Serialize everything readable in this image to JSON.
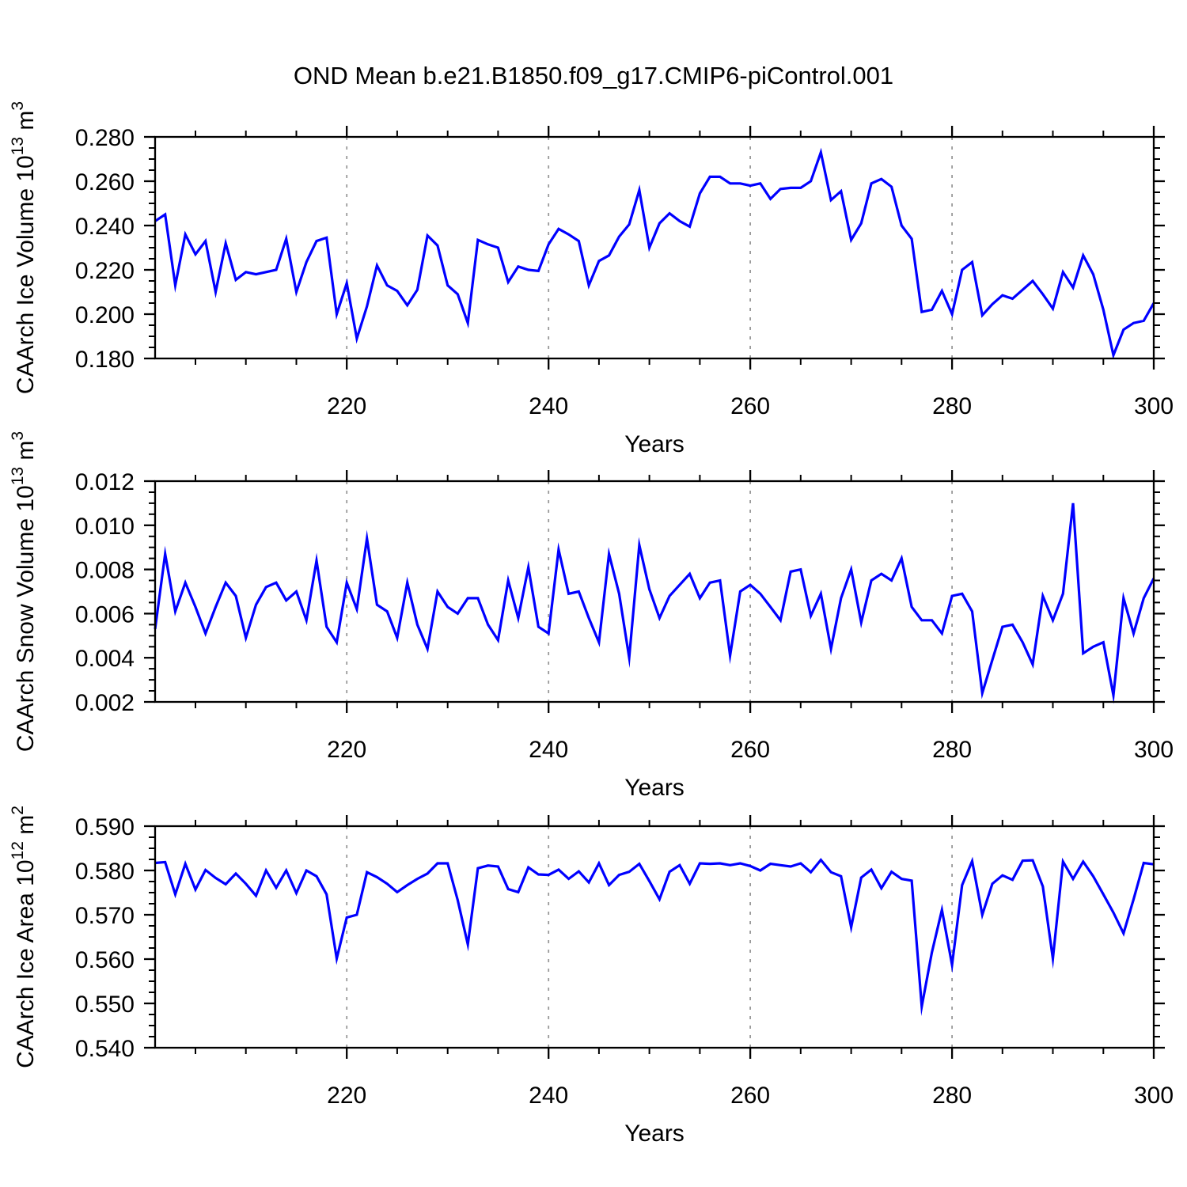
{
  "title": "OND Mean b.e21.B1850.f09_g17.CMIP6-piControl.001",
  "line_color": "#0000ff",
  "grid_color": "#999999",
  "frame_color": "#000000",
  "xtick_labels": [
    "220",
    "240",
    "260",
    "280",
    "300"
  ],
  "chart_data": [
    {
      "type": "line",
      "series_name": "caarch-ice-volume",
      "ylabel": {
        "base": "CAArch Ice Volume 10",
        "exp": "13",
        "unit": " m",
        "unit_exp": "3"
      },
      "xlabel": "Years",
      "ylim": [
        0.18,
        0.28
      ],
      "ytick_step": 0.02,
      "yminor_step": 0.005,
      "ytick_labels": [
        "0.180",
        "0.200",
        "0.220",
        "0.240",
        "0.260",
        "0.280"
      ],
      "xlim": [
        201,
        300
      ],
      "xticks": [
        220,
        240,
        260,
        280,
        300
      ],
      "xminor_step": 5,
      "grid_x": [
        220,
        240,
        260,
        280
      ],
      "legend": "none",
      "x": [
        201,
        202,
        203,
        204,
        205,
        206,
        207,
        208,
        209,
        210,
        211,
        212,
        213,
        214,
        215,
        216,
        217,
        218,
        219,
        220,
        221,
        222,
        223,
        224,
        225,
        226,
        227,
        228,
        229,
        230,
        231,
        232,
        233,
        234,
        235,
        236,
        237,
        238,
        239,
        240,
        241,
        242,
        243,
        244,
        245,
        246,
        247,
        248,
        249,
        250,
        251,
        252,
        253,
        254,
        255,
        256,
        257,
        258,
        259,
        260,
        261,
        262,
        263,
        264,
        265,
        266,
        267,
        268,
        269,
        270,
        271,
        272,
        273,
        274,
        275,
        276,
        277,
        278,
        279,
        280,
        281,
        282,
        283,
        284,
        285,
        286,
        287,
        288,
        289,
        290,
        291,
        292,
        293,
        294,
        295,
        296,
        297,
        298,
        299,
        300
      ],
      "values": [
        0.242,
        0.245,
        0.213,
        0.236,
        0.227,
        0.233,
        0.21,
        0.232,
        0.2155,
        0.219,
        0.218,
        0.219,
        0.22,
        0.234,
        0.21,
        0.2235,
        0.233,
        0.2345,
        0.2,
        0.214,
        0.189,
        0.2035,
        0.222,
        0.213,
        0.2105,
        0.204,
        0.211,
        0.2355,
        0.231,
        0.213,
        0.209,
        0.196,
        0.2335,
        0.2315,
        0.23,
        0.2145,
        0.2215,
        0.22,
        0.2195,
        0.2315,
        0.2385,
        0.236,
        0.233,
        0.213,
        0.224,
        0.2265,
        0.235,
        0.2405,
        0.256,
        0.23,
        0.241,
        0.2455,
        0.242,
        0.2395,
        0.2545,
        0.262,
        0.262,
        0.259,
        0.259,
        0.258,
        0.259,
        0.252,
        0.2565,
        0.257,
        0.257,
        0.26,
        0.273,
        0.2515,
        0.2555,
        0.2335,
        0.241,
        0.259,
        0.261,
        0.2575,
        0.24,
        0.234,
        0.201,
        0.202,
        0.2105,
        0.2,
        0.22,
        0.2235,
        0.1995,
        0.2045,
        0.2085,
        0.207,
        0.211,
        0.215,
        0.209,
        0.2025,
        0.219,
        0.212,
        0.2265,
        0.218,
        0.202,
        0.1815,
        0.193,
        0.196,
        0.197,
        0.205
      ]
    },
    {
      "type": "line",
      "series_name": "caarch-snow-volume",
      "ylabel": {
        "base": "CAArch Snow Volume 10",
        "exp": "13",
        "unit": " m",
        "unit_exp": "3"
      },
      "xlabel": "Years",
      "ylim": [
        0.002,
        0.012
      ],
      "ytick_step": 0.002,
      "yminor_step": 0.0005,
      "ytick_labels": [
        "0.002",
        "0.004",
        "0.006",
        "0.008",
        "0.010",
        "0.012"
      ],
      "xlim": [
        201,
        300
      ],
      "xticks": [
        220,
        240,
        260,
        280,
        300
      ],
      "xminor_step": 5,
      "grid_x": [
        220,
        240,
        260,
        280
      ],
      "legend": "none",
      "x": [
        201,
        202,
        203,
        204,
        205,
        206,
        207,
        208,
        209,
        210,
        211,
        212,
        213,
        214,
        215,
        216,
        217,
        218,
        219,
        220,
        221,
        222,
        223,
        224,
        225,
        226,
        227,
        228,
        229,
        230,
        231,
        232,
        233,
        234,
        235,
        236,
        237,
        238,
        239,
        240,
        241,
        242,
        243,
        244,
        245,
        246,
        247,
        248,
        249,
        250,
        251,
        252,
        253,
        254,
        255,
        256,
        257,
        258,
        259,
        260,
        261,
        262,
        263,
        264,
        265,
        266,
        267,
        268,
        269,
        270,
        271,
        272,
        273,
        274,
        275,
        276,
        277,
        278,
        279,
        280,
        281,
        282,
        283,
        284,
        285,
        286,
        287,
        288,
        289,
        290,
        291,
        292,
        293,
        294,
        295,
        296,
        297,
        298,
        299,
        300
      ],
      "values": [
        0.0053,
        0.0087,
        0.0061,
        0.0074,
        0.0063,
        0.0051,
        0.0063,
        0.0074,
        0.0068,
        0.0049,
        0.0064,
        0.0072,
        0.0074,
        0.0066,
        0.007,
        0.0057,
        0.0084,
        0.0054,
        0.0047,
        0.0074,
        0.0062,
        0.0094,
        0.0064,
        0.0061,
        0.0049,
        0.0074,
        0.0055,
        0.0044,
        0.007,
        0.0063,
        0.006,
        0.0067,
        0.0067,
        0.0055,
        0.0048,
        0.0075,
        0.0058,
        0.0081,
        0.0054,
        0.0051,
        0.0089,
        0.0069,
        0.007,
        0.0058,
        0.0047,
        0.0087,
        0.0069,
        0.004,
        0.0091,
        0.0071,
        0.0058,
        0.0068,
        0.0073,
        0.0078,
        0.0067,
        0.0074,
        0.0075,
        0.0041,
        0.007,
        0.0073,
        0.0069,
        0.0063,
        0.0057,
        0.0079,
        0.008,
        0.0059,
        0.0069,
        0.0044,
        0.0067,
        0.008,
        0.0056,
        0.0075,
        0.0078,
        0.0075,
        0.0085,
        0.0063,
        0.0057,
        0.0057,
        0.0051,
        0.0068,
        0.0069,
        0.0061,
        0.0024,
        0.0039,
        0.0054,
        0.0055,
        0.0047,
        0.0037,
        0.0068,
        0.0057,
        0.0069,
        0.011,
        0.0042,
        0.0045,
        0.0047,
        0.0023,
        0.0067,
        0.0051,
        0.0067,
        0.0076
      ]
    },
    {
      "type": "line",
      "series_name": "caarch-ice-area",
      "ylabel": {
        "base": "CAArch Ice Area 10",
        "exp": "12",
        "unit": " m",
        "unit_exp": "2"
      },
      "xlabel": "Years",
      "ylim": [
        0.54,
        0.59
      ],
      "ytick_step": 0.01,
      "yminor_step": 0.0025,
      "ytick_labels": [
        "0.540",
        "0.550",
        "0.560",
        "0.570",
        "0.580",
        "0.590"
      ],
      "xlim": [
        201,
        300
      ],
      "xticks": [
        220,
        240,
        260,
        280,
        300
      ],
      "xminor_step": 5,
      "grid_x": [
        220,
        240,
        260,
        280
      ],
      "legend": "none",
      "x": [
        201,
        202,
        203,
        204,
        205,
        206,
        207,
        208,
        209,
        210,
        211,
        212,
        213,
        214,
        215,
        216,
        217,
        218,
        219,
        220,
        221,
        222,
        223,
        224,
        225,
        226,
        227,
        228,
        229,
        230,
        231,
        232,
        233,
        234,
        235,
        236,
        237,
        238,
        239,
        240,
        241,
        242,
        243,
        244,
        245,
        246,
        247,
        248,
        249,
        250,
        251,
        252,
        253,
        254,
        255,
        256,
        257,
        258,
        259,
        260,
        261,
        262,
        263,
        264,
        265,
        266,
        267,
        268,
        269,
        270,
        271,
        272,
        273,
        274,
        275,
        276,
        277,
        278,
        279,
        280,
        281,
        282,
        283,
        284,
        285,
        286,
        287,
        288,
        289,
        290,
        291,
        292,
        293,
        294,
        295,
        296,
        297,
        298,
        299,
        300
      ],
      "values": [
        0.5817,
        0.5819,
        0.5746,
        0.5815,
        0.5757,
        0.5801,
        0.5783,
        0.5769,
        0.5793,
        0.577,
        0.5743,
        0.58,
        0.5761,
        0.58,
        0.5749,
        0.58,
        0.5787,
        0.5746,
        0.5601,
        0.5694,
        0.57,
        0.5796,
        0.5785,
        0.577,
        0.5751,
        0.5767,
        0.5781,
        0.5793,
        0.5816,
        0.5816,
        0.5733,
        0.5633,
        0.5805,
        0.5811,
        0.5809,
        0.5758,
        0.5751,
        0.5807,
        0.5791,
        0.579,
        0.5802,
        0.5781,
        0.5798,
        0.5773,
        0.5816,
        0.5767,
        0.579,
        0.5797,
        0.5815,
        0.5776,
        0.5735,
        0.5797,
        0.5812,
        0.577,
        0.5816,
        0.5815,
        0.5816,
        0.5812,
        0.5816,
        0.581,
        0.58,
        0.5815,
        0.5812,
        0.5809,
        0.5816,
        0.5796,
        0.5824,
        0.5796,
        0.5787,
        0.5672,
        0.5784,
        0.5802,
        0.576,
        0.5797,
        0.5781,
        0.5777,
        0.5493,
        0.5615,
        0.5711,
        0.5587,
        0.5767,
        0.5821,
        0.57,
        0.577,
        0.5789,
        0.5779,
        0.5822,
        0.5823,
        0.5764,
        0.5601,
        0.582,
        0.5781,
        0.582,
        0.5787,
        0.5746,
        0.5705,
        0.5658,
        0.5735,
        0.5817,
        0.5814
      ]
    }
  ]
}
